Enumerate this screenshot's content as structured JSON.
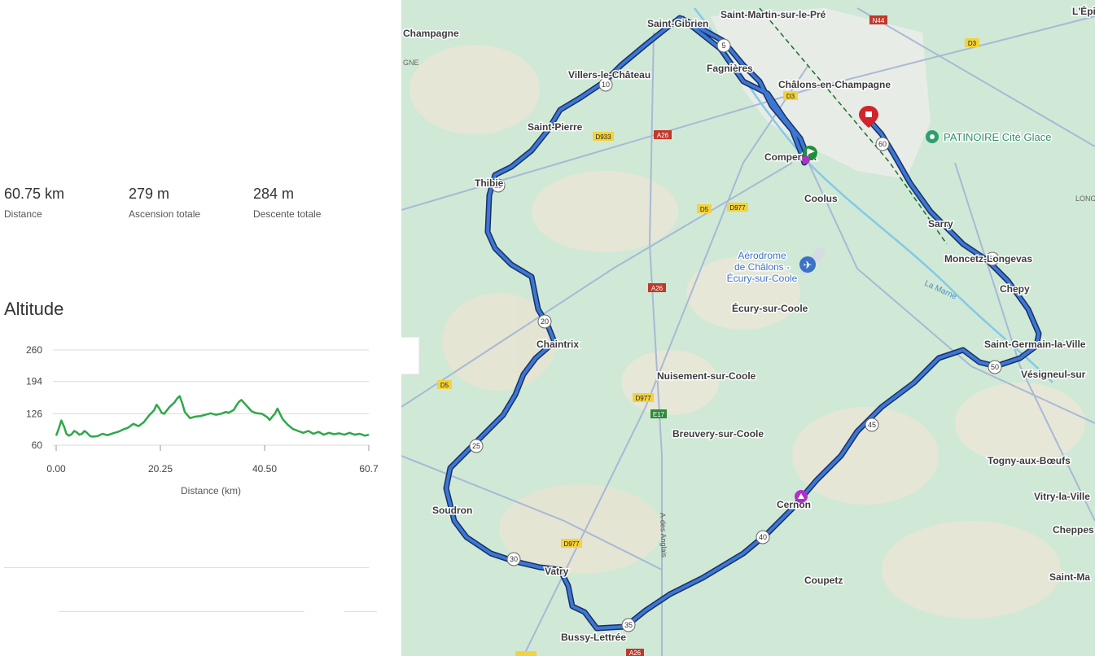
{
  "stats": [
    {
      "value": "60.75 km",
      "label": "Distance"
    },
    {
      "value": "279 m",
      "label": "Ascension totale"
    },
    {
      "value": "284 m",
      "label": "Descente totale"
    }
  ],
  "altitude_title": "Altitude",
  "chart_data": {
    "type": "line",
    "title": "",
    "xlabel": "Distance (km)",
    "ylabel": "",
    "xlim": [
      0,
      60.75
    ],
    "ylim": [
      60,
      260
    ],
    "yticks": [
      "260",
      "194",
      "126",
      "60"
    ],
    "xticks": [
      "0.00",
      "20.25",
      "40.50",
      "60.7"
    ],
    "grid": true,
    "color": "#2ea84a",
    "series": [
      {
        "x": [
          0,
          0.5,
          1,
          1.5,
          2,
          2.5,
          3,
          3.5,
          4,
          4.5,
          5,
          5.5,
          6,
          6.5,
          7,
          8,
          9,
          10,
          11,
          12,
          13,
          14,
          15,
          16,
          17,
          18,
          19,
          19.5,
          20,
          20.5,
          21,
          22,
          22.5,
          23,
          23.5,
          24,
          24.5,
          25,
          26,
          27,
          28,
          29,
          30,
          31,
          32,
          33,
          33.5,
          34,
          34.5,
          35,
          35.5,
          36,
          37,
          38,
          39,
          40,
          41,
          41.5,
          42,
          42.5,
          43,
          44,
          45,
          46,
          47,
          48,
          49,
          50,
          51,
          52,
          53,
          54,
          55,
          56,
          57,
          58,
          59,
          60,
          60.75
        ],
        "y": [
          80,
          95,
          112,
          100,
          84,
          80,
          83,
          90,
          87,
          82,
          84,
          90,
          86,
          80,
          78,
          79,
          84,
          81,
          85,
          88,
          93,
          97,
          105,
          100,
          108,
          122,
          133,
          145,
          138,
          128,
          126,
          140,
          145,
          150,
          158,
          163,
          148,
          130,
          117,
          120,
          121,
          124,
          127,
          124,
          126,
          130,
          128,
          131,
          134,
          143,
          151,
          155,
          143,
          131,
          127,
          126,
          119,
          113,
          120,
          126,
          137,
          115,
          103,
          94,
          90,
          86,
          90,
          84,
          88,
          82,
          86,
          83,
          85,
          82,
          86,
          82,
          84,
          80,
          82
        ]
      }
    ]
  },
  "map": {
    "places": [
      "Saint-Gibrien",
      "Saint-Martin-sur-le-Pré",
      "Fagnières",
      "Châlons-en-Champagne",
      "Villers-le-Château",
      "Saint-Pierre",
      "Compertrix",
      "Thibie",
      "Coolus",
      "Sarry",
      "Moncetz-Longevas",
      "Chepy",
      "Aérodrome",
      "de Châlons -",
      "Écury-sur-Coole",
      "Écury-sur-Coole",
      "Saint-Germain-la-Ville",
      "Chaintrix",
      "Vésigneul-sur",
      "Nuisement-sur-Coole",
      "Breuvery-sur-Coole",
      "Tognу-aux-Bœufs",
      "Cernon",
      "Vitry-la-Ville",
      "Soudron",
      "Cheppes",
      "Coupetz",
      "Vatry",
      "Saint-Ma",
      "Bussy-Lettrée",
      "L'Épi",
      "Champagne",
      "La Marne",
      "GNE",
      "LONG",
      "PATINOIRE Cité Glace"
    ],
    "roads": [
      "N44",
      "D3",
      "D3",
      "D933",
      "A26",
      "D5",
      "D977",
      "A26",
      "D5",
      "D977",
      "E17",
      "D977",
      "D977",
      "A26",
      "D5",
      "A-des Anglais"
    ],
    "km_markers": [
      "5",
      "10",
      "15",
      "20",
      "25",
      "30",
      "35",
      "40",
      "45",
      "50",
      "55",
      "60"
    ],
    "accent_color": "#3a72c4",
    "route_color": "#2563c7"
  }
}
